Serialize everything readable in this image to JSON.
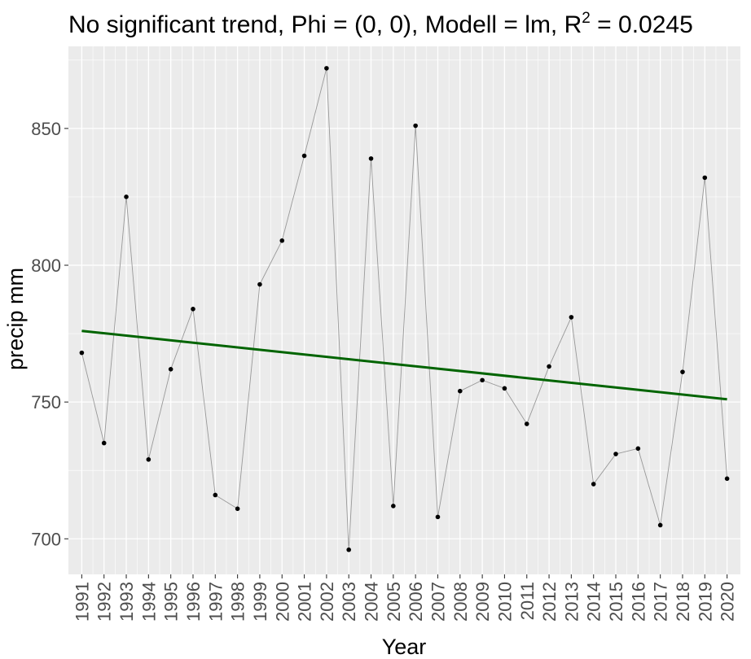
{
  "chart_data": {
    "type": "line",
    "title": "No significant trend, Phi = (0, 0), Modell = lm, R",
    "title_superscript": "2",
    "title_suffix": " = 0.0245",
    "xlabel": "Year",
    "ylabel": "precip mm",
    "x": [
      1991,
      1992,
      1993,
      1994,
      1995,
      1996,
      1997,
      1998,
      1999,
      2000,
      2001,
      2002,
      2003,
      2004,
      2005,
      2006,
      2007,
      2008,
      2009,
      2010,
      2011,
      2012,
      2013,
      2014,
      2015,
      2016,
      2017,
      2018,
      2019,
      2020
    ],
    "x_tick_labels": [
      "1991",
      "1992",
      "1993",
      "1994",
      "1995",
      "1996",
      "1997",
      "1998",
      "1999",
      "2000",
      "2001",
      "2002",
      "2003",
      "2004",
      "2005",
      "2006",
      "2007",
      "2008",
      "2009",
      "2010",
      "2011",
      "2012",
      "2013",
      "2014",
      "2015",
      "2016",
      "2017",
      "2018",
      "2019",
      "2020"
    ],
    "series": [
      {
        "values": [
          768,
          735,
          825,
          729,
          762,
          784,
          716,
          711,
          793,
          809,
          840,
          872,
          696,
          839,
          712,
          851,
          708,
          754,
          758,
          755,
          742,
          763,
          781,
          720,
          731,
          733,
          705,
          761,
          832,
          722
        ],
        "line_color": "#999999",
        "point_color": "#000000"
      }
    ],
    "trend": {
      "start": [
        1991,
        776
      ],
      "end": [
        2020,
        751
      ],
      "color": "#006400"
    },
    "y_ticks": [
      700,
      750,
      800,
      850
    ],
    "xlim": [
      1990.4,
      2020.6
    ],
    "ylim": [
      687,
      880
    ],
    "grid": true,
    "panel_background": "#ebebeb",
    "grid_color": "#ffffff"
  }
}
